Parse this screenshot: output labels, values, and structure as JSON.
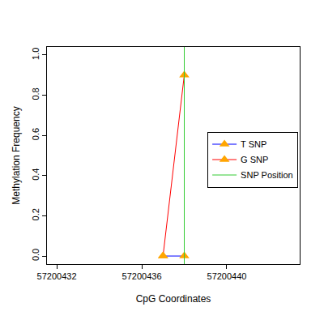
{
  "chart_data": {
    "type": "line",
    "x_label": "CpG Coordinates",
    "y_label": "Methylation Frequency",
    "xlim": [
      57200431.54,
      57200443.43
    ],
    "ylim": [
      -0.04,
      1.04
    ],
    "xticks": [
      57200432,
      57200436,
      57200440
    ],
    "yticks": [
      {
        "value": 0,
        "label": "0.0"
      },
      0.2,
      0.4,
      0.6,
      0.8,
      {
        "value": 1,
        "label": "1.0"
      }
    ],
    "legend": "right",
    "grid": false,
    "series": [
      {
        "name": "T SNP",
        "color": "blue",
        "marker": "triangle",
        "x": [
          57200437,
          57200438
        ],
        "values": [
          0,
          0
        ]
      },
      {
        "name": "G SNP",
        "color": "red",
        "marker": "triangle",
        "x": [
          57200437,
          57200438
        ],
        "values": [
          0,
          0.9
        ]
      },
      {
        "name": "SNP Position",
        "color": "#33cc33",
        "type": "vline",
        "x": [
          57200438
        ]
      }
    ]
  }
}
